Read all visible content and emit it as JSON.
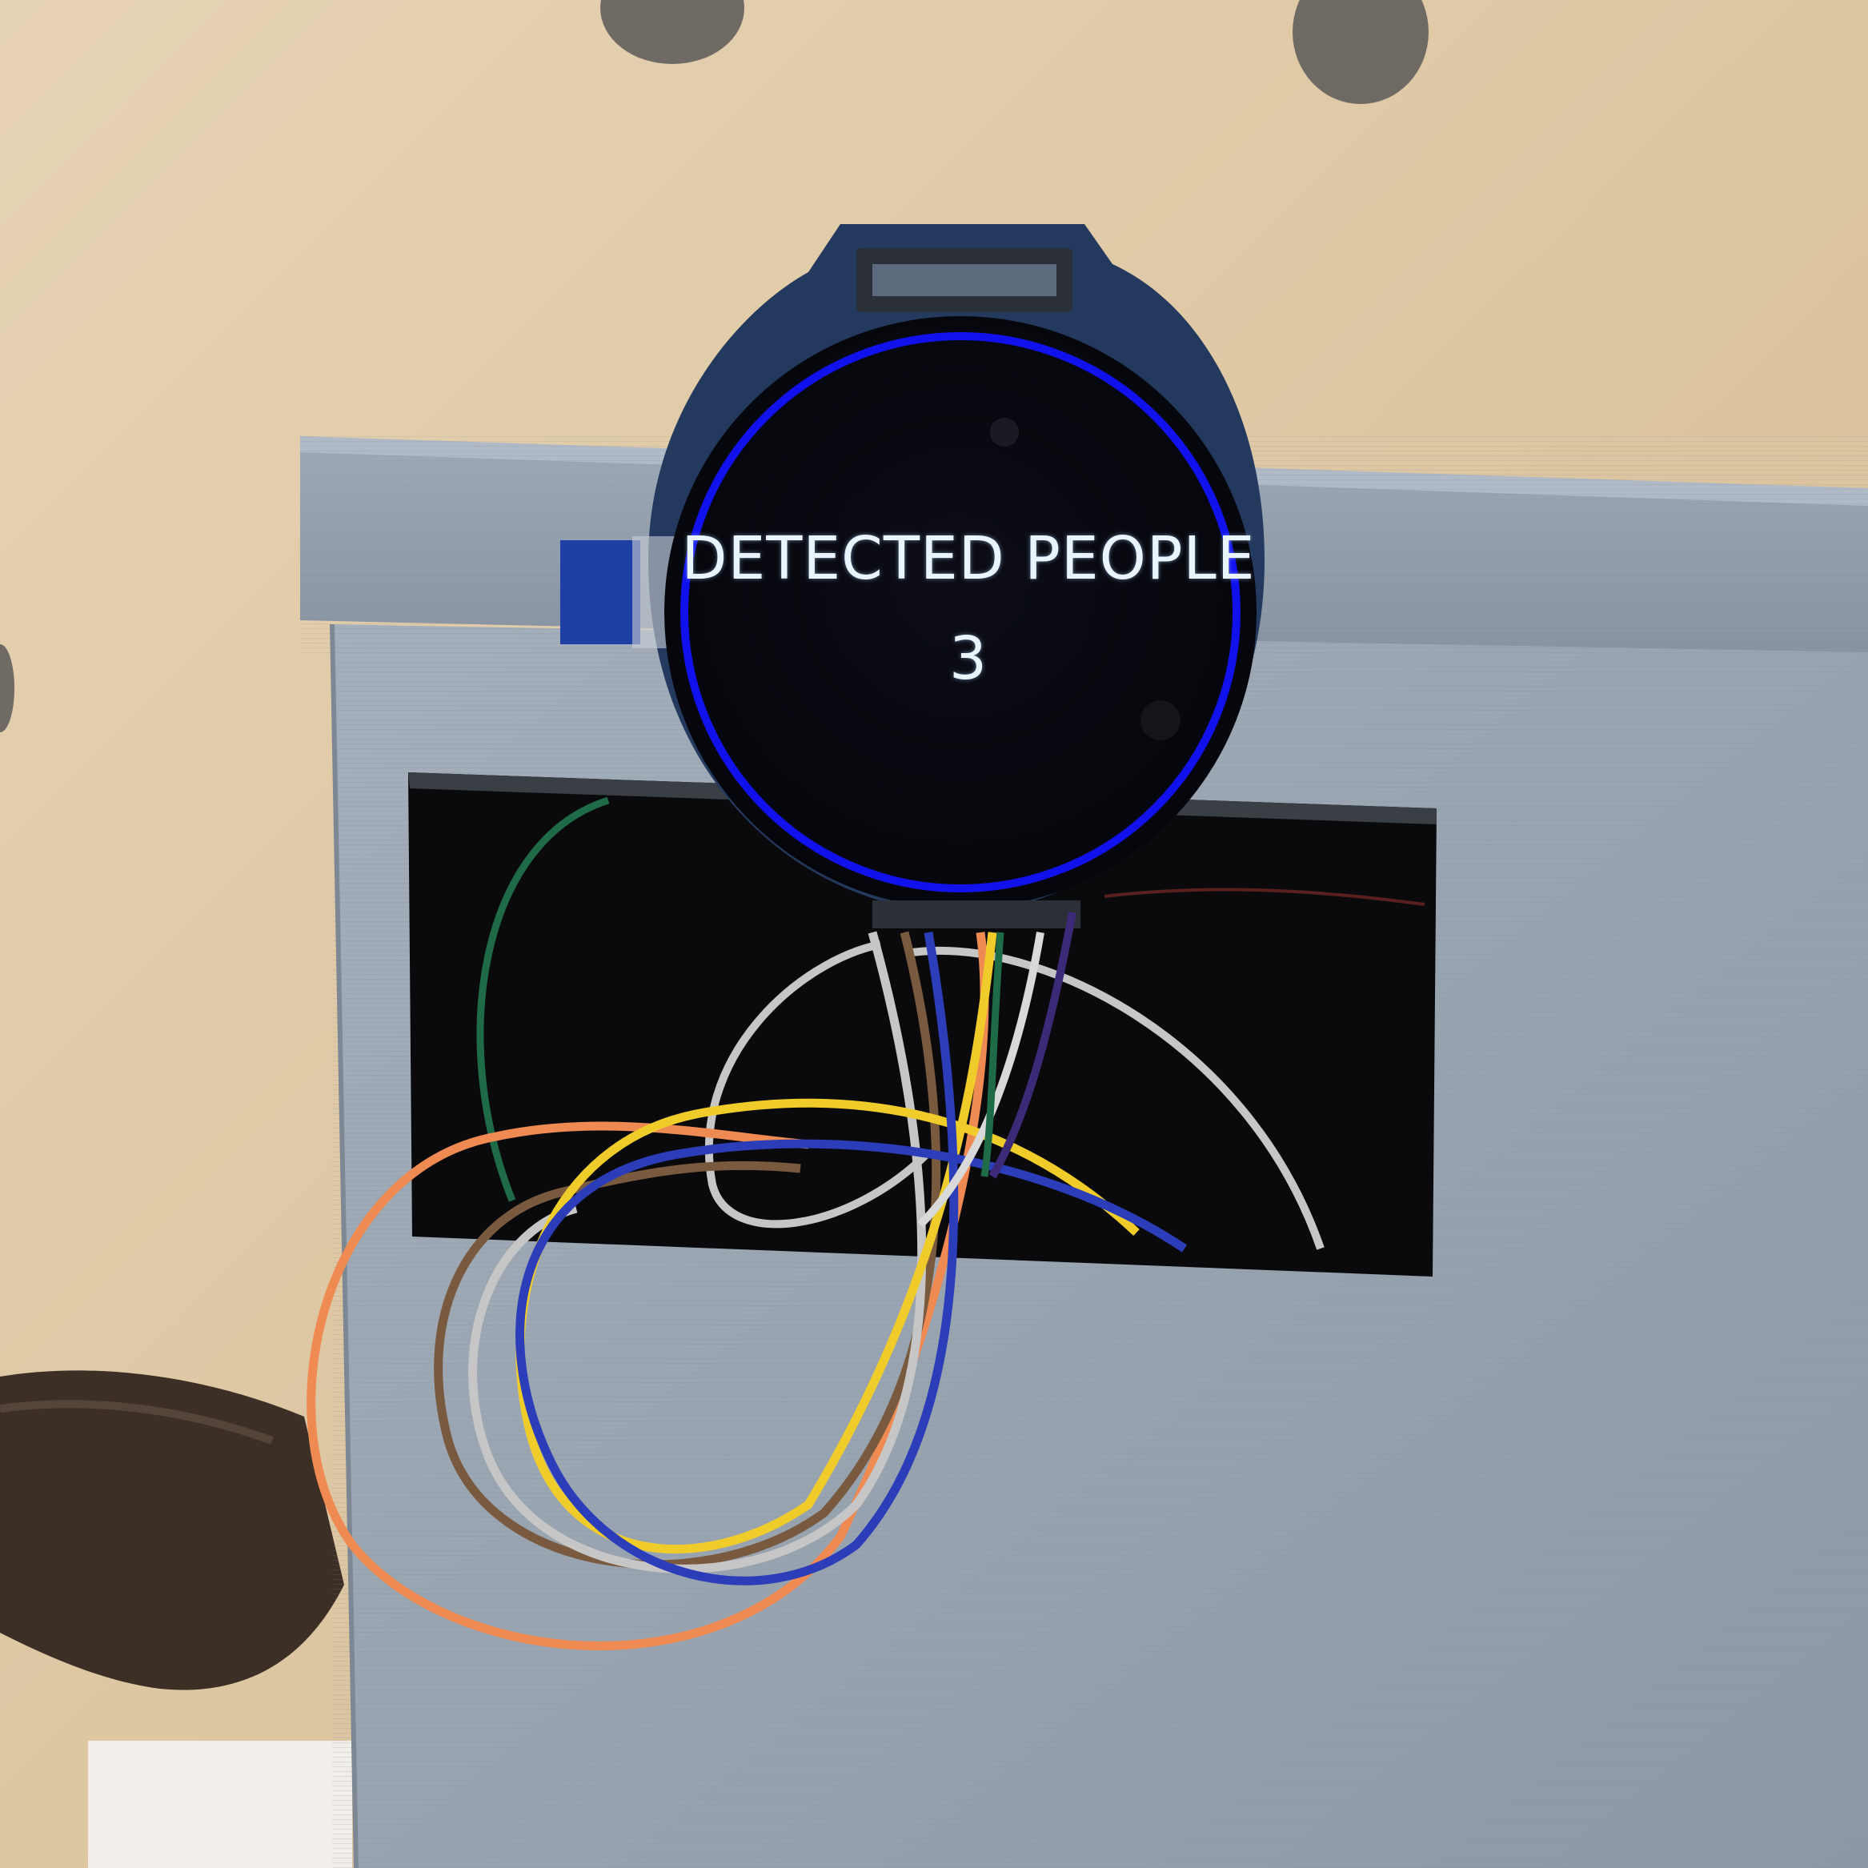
{
  "display": {
    "title": "DETECTED PEOPLE",
    "count": "3"
  },
  "colors": {
    "pegboard": "#e3cfae",
    "box": "#9aa5b2",
    "screen": "#07080f",
    "ring": "#1111ee",
    "text": "#e9f4ff",
    "wire_orange": "#ee8a52",
    "wire_yellow": "#f0cc2a",
    "wire_blue": "#2b3db8",
    "wire_brown": "#7a5a3e",
    "wire_gray": "#c6c6c6",
    "wire_purple": "#3c2a78",
    "wire_green": "#1f6b48"
  }
}
